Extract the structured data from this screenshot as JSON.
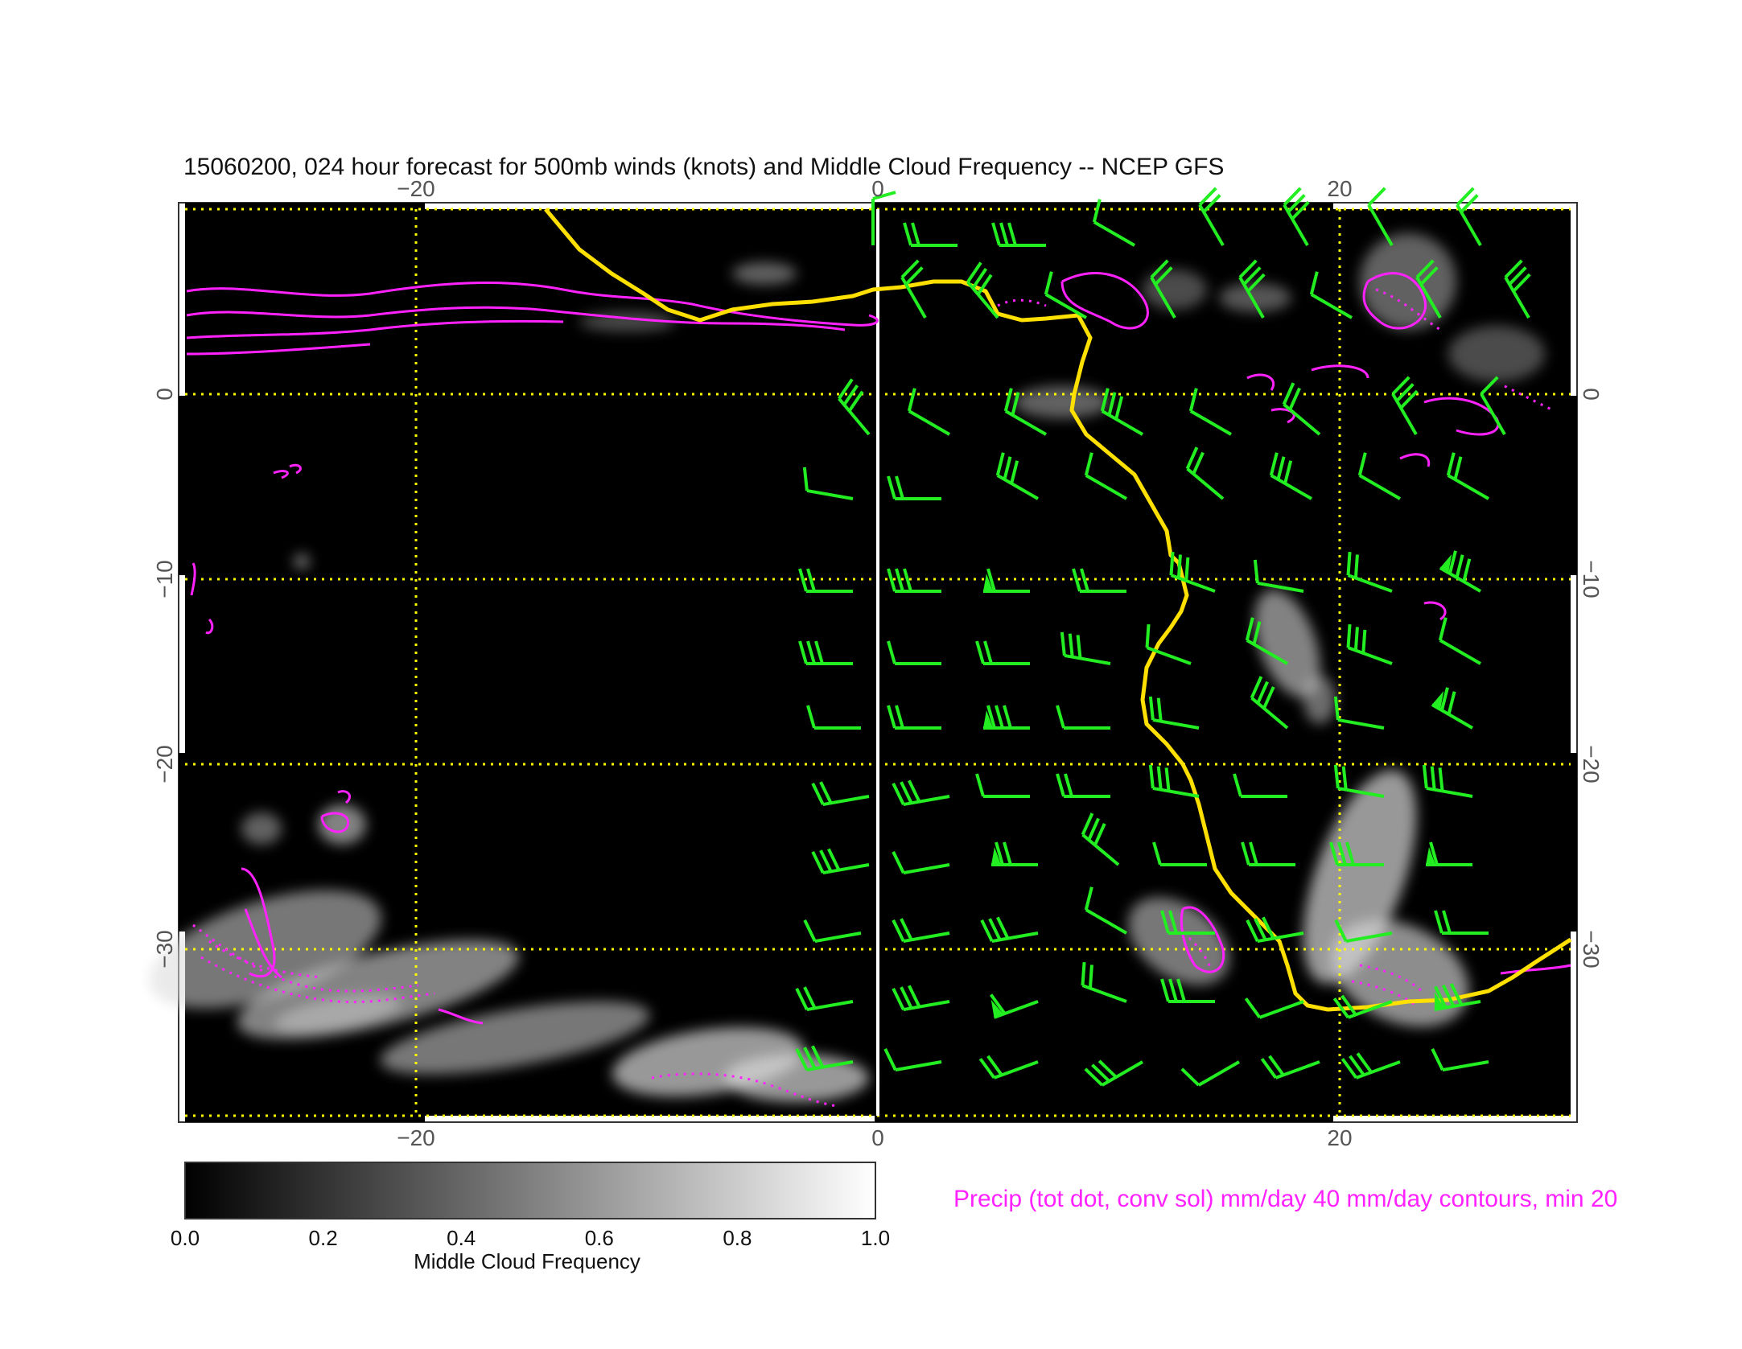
{
  "title": "15060200, 024 hour forecast for 500mb winds (knots) and Middle Cloud Frequency -- NCEP GFS",
  "colors": {
    "background": "#000000",
    "grid": "#ffff00",
    "coastline": "#ffe000",
    "wind_barbs": "#22ee22",
    "precip_contours": "#ff22ff",
    "cloud": "#d8d8d8",
    "meridian": "#ffffff"
  },
  "axes": {
    "lon_range": [
      -30,
      30
    ],
    "lat_range": [
      -39,
      10
    ],
    "x_ticks": [
      {
        "value": -20,
        "label": "−20"
      },
      {
        "value": 0,
        "label": "0"
      },
      {
        "value": 20,
        "label": "20"
      }
    ],
    "y_ticks": [
      {
        "value": 0,
        "label": "0"
      },
      {
        "value": -10,
        "label": "−10"
      },
      {
        "value": -20,
        "label": "−20"
      },
      {
        "value": -30,
        "label": "−30"
      }
    ],
    "grid": true
  },
  "colorbar": {
    "label": "Middle Cloud Frequency",
    "ticks": [
      "0.0",
      "0.2",
      "0.4",
      "0.6",
      "0.8",
      "1.0"
    ]
  },
  "precip_note": "Precip (tot dot, conv sol) mm/day 40 mm/day contours, min 20"
}
